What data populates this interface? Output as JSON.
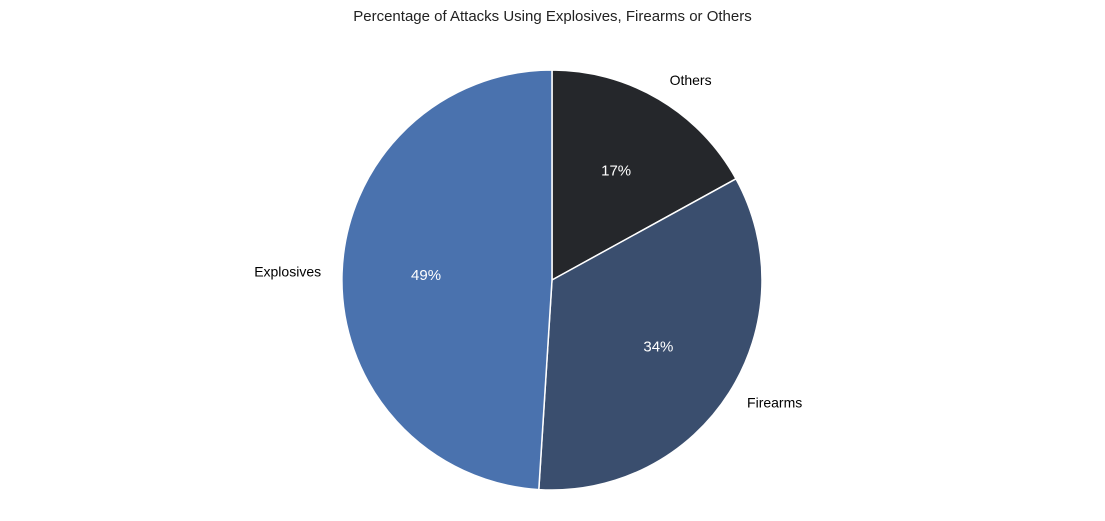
{
  "chart_data": {
    "type": "pie",
    "title": "Percentage of Attacks Using Explosives, Firearms or Others",
    "start_angle_deg": 90,
    "direction": "clockwise",
    "slices": [
      {
        "label": "Others",
        "value": 17,
        "pct_label": "17%",
        "color": "#25272b"
      },
      {
        "label": "Firearms",
        "value": 34,
        "pct_label": "34%",
        "color": "#3a4e6e"
      },
      {
        "label": "Explosives",
        "value": 49,
        "pct_label": "49%",
        "color": "#4a72ae"
      }
    ],
    "edge_color": "#ffffff"
  }
}
